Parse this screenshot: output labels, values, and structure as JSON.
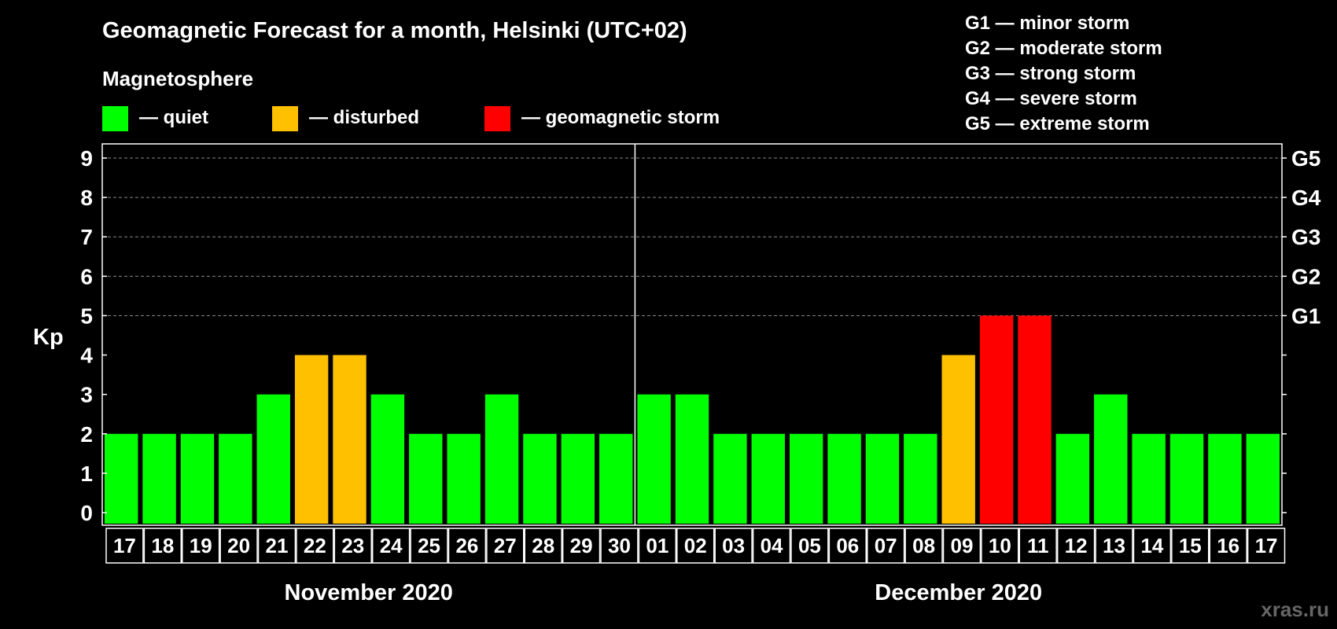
{
  "chart_data": {
    "type": "bar",
    "title": "Geomagnetic Forecast for a month, Helsinki (UTC+02)",
    "legend": {
      "heading": "Magnetosphere",
      "items": [
        {
          "label": "— quiet",
          "color": "#00ff00"
        },
        {
          "label": "— disturbed",
          "color": "#ffc000"
        },
        {
          "label": "— geomagnetic storm",
          "color": "#ff0000"
        }
      ]
    },
    "storm_scale": [
      "G1 — minor storm",
      "G2 — moderate storm",
      "G3 — strong storm",
      "G4 — severe storm",
      "G5 — extreme storm"
    ],
    "ylabel": "Kp",
    "ylim": [
      0,
      9
    ],
    "yticks": [
      "0",
      "1",
      "2",
      "3",
      "4",
      "5",
      "6",
      "7",
      "8",
      "9"
    ],
    "right_ticks": [
      {
        "kp": 5,
        "label": "G1"
      },
      {
        "kp": 6,
        "label": "G2"
      },
      {
        "kp": 7,
        "label": "G3"
      },
      {
        "kp": 8,
        "label": "G4"
      },
      {
        "kp": 9,
        "label": "G5"
      }
    ],
    "grid_from_kp": 5,
    "categories": [
      "17",
      "18",
      "19",
      "20",
      "21",
      "22",
      "23",
      "24",
      "25",
      "26",
      "27",
      "28",
      "29",
      "30",
      "01",
      "02",
      "03",
      "04",
      "05",
      "06",
      "07",
      "08",
      "09",
      "10",
      "11",
      "12",
      "13",
      "14",
      "15",
      "16",
      "17"
    ],
    "values": [
      2,
      2,
      2,
      2,
      3,
      4,
      4,
      3,
      2,
      2,
      3,
      2,
      2,
      2,
      3,
      3,
      2,
      2,
      2,
      2,
      2,
      2,
      4,
      5,
      5,
      2,
      3,
      2,
      2,
      2,
      2
    ],
    "colors": {
      "quiet": "#00ff00",
      "disturbed": "#ffc000",
      "storm": "#ff0000"
    },
    "months": [
      {
        "label": "November 2020",
        "days": 14
      },
      {
        "label": "December 2020",
        "days": 17
      }
    ]
  },
  "watermark": "xras.ru"
}
